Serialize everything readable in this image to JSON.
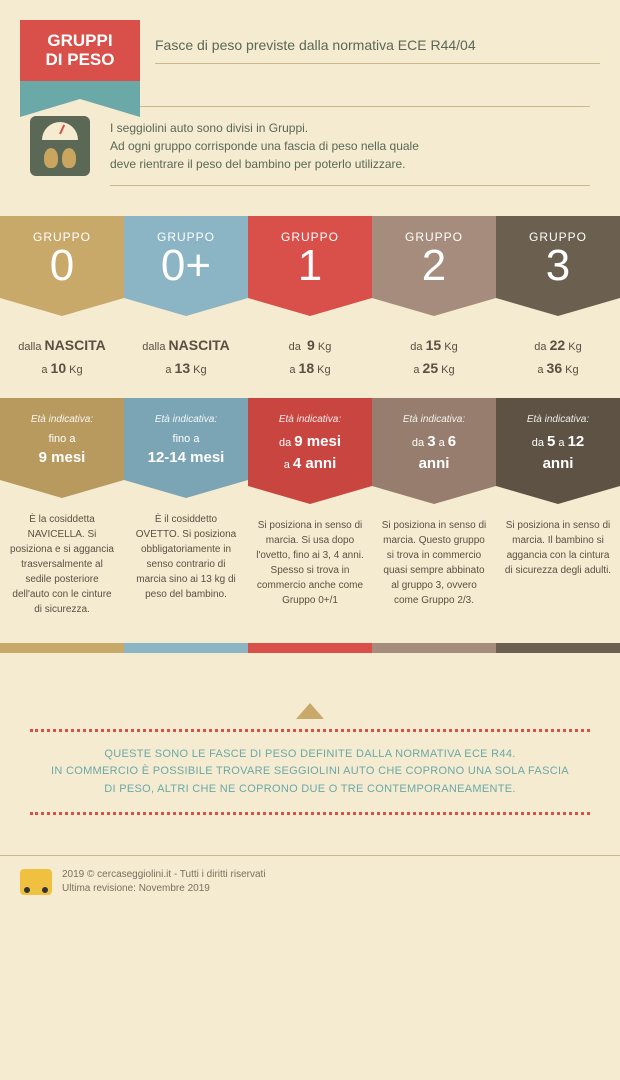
{
  "header": {
    "ribbon_line1": "GRUPPI",
    "ribbon_line2": "DI PESO",
    "subtitle": "Fasce di peso previste dalla normativa ECE R44/04"
  },
  "intro": "I seggiolini auto sono divisi in Gruppi.\nAd ogni gruppo corrisponde una fascia di peso nella quale\ndeve rientrare il peso del bambino per poterlo utilizzare.",
  "groups": [
    {
      "label": "GRUPPO",
      "num": "0",
      "weight_html": "dalla <b>NASCITA</b><br>a <b>10</b> Kg",
      "age_html": "<em>Età indicativa:</em>fino a<br><b>9 mesi</b>",
      "desc": "È la cosiddetta NAVICELLA. Si posiziona e si aggancia trasversalmente al sedile posteriore dell'auto con le cinture di sicurezza."
    },
    {
      "label": "GRUPPO",
      "num": "0+",
      "weight_html": "dalla <b>NASCITA</b><br>a <b>13</b> Kg",
      "age_html": "<em>Età indicativa:</em>fino a<br><b>12-14 mesi</b>",
      "desc": "È il cosiddetto OVETTO. Si posiziona obbligatoriamente in senso contrario di marcia sino ai 13 kg di peso del bambino."
    },
    {
      "label": "GRUPPO",
      "num": "1",
      "weight_html": "da &nbsp;<b>9</b> Kg<br>a <b>18</b> Kg",
      "age_html": "<em>Età indicativa:</em>da <b>9 mesi</b><br>a <b>4 anni</b>",
      "desc": "Si posiziona in senso di marcia. Si usa dopo l'ovetto, fino ai 3, 4 anni. Spesso si trova in commercio anche come Gruppo 0+/1"
    },
    {
      "label": "GRUPPO",
      "num": "2",
      "weight_html": "da <b>15</b> Kg<br>a <b>25</b> Kg",
      "age_html": "<em>Età indicativa:</em>da <b>3</b> a <b>6</b><br><b>anni</b>",
      "desc": "Si posiziona in senso di marcia. Questo gruppo si trova in commercio quasi sempre abbinato al gruppo 3, ovvero come Gruppo 2/3."
    },
    {
      "label": "GRUPPO",
      "num": "3",
      "weight_html": "da <b>22</b> Kg<br>a <b>36</b> Kg",
      "age_html": "<em>Età indicativa:</em>da <b>5</b> a <b>12</b><br><b>anni</b>",
      "desc": "Si posiziona in senso di marcia. Il bambino si aggancia con la cintura di sicurezza degli adulti."
    }
  ],
  "footer_note": "QUESTE SONO LE FASCE DI PESO DEFINITE DALLA NORMATIVA ECE R44.\nIN COMMERCIO È POSSIBILE TROVARE SEGGIOLINI AUTO CHE COPRONO UNA SOLA FASCIA\nDI PESO, ALTRI CHE NE COPRONO DUE O TRE CONTEMPORANEAMENTE.",
  "credits": {
    "copyright": "2019 © cercaseggiolini.it - Tutti i diritti riservati",
    "revision": "Ultima revisione: Novembre 2019"
  },
  "colors": {
    "g0": "#c9a96a",
    "g0p": "#8bb4c4",
    "g1": "#d94f4a",
    "g2": "#a68c7c",
    "g3": "#6b5f4f",
    "background": "#f5ebd0",
    "accent_teal": "#6ba8a8"
  }
}
